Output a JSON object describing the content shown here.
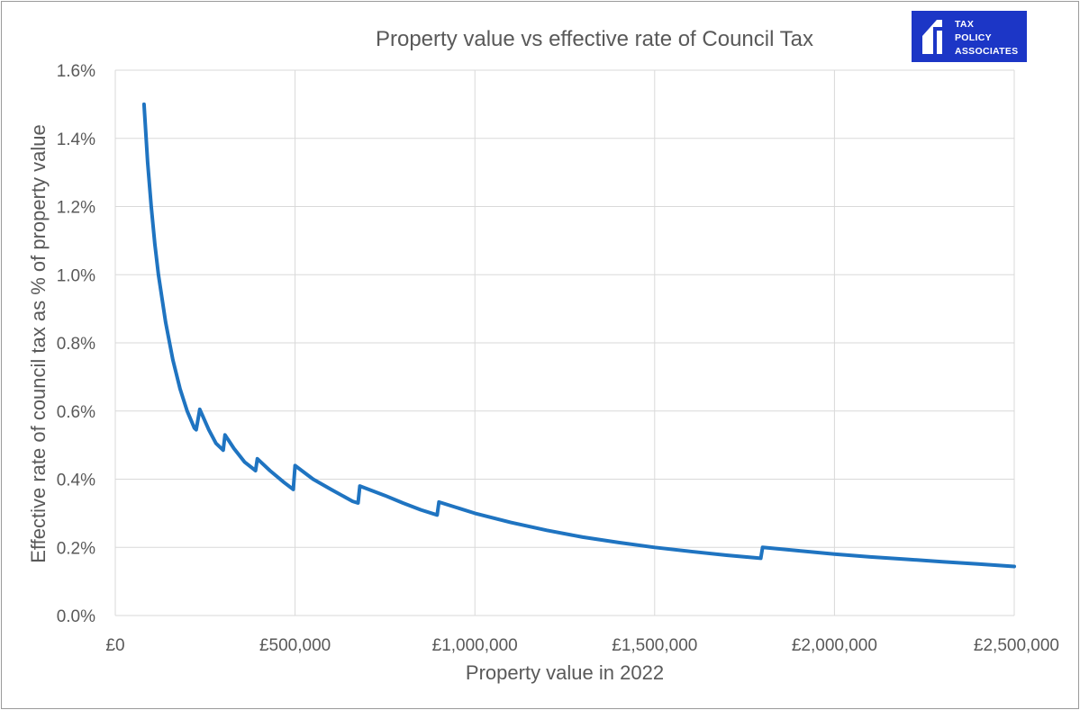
{
  "chart_data": {
    "type": "line",
    "title": "Property value vs effective rate of Council Tax",
    "xlabel": "Property value in 2022",
    "ylabel": "Effective rate of council tax as % of property value",
    "xlim": [
      0,
      2500000
    ],
    "ylim": [
      0,
      1.6
    ],
    "x_ticks": [
      0,
      500000,
      1000000,
      1500000,
      2000000,
      2500000
    ],
    "x_tick_labels": [
      "£0",
      "£500,000",
      "£1,000,000",
      "£1,500,000",
      "£2,000,000",
      "£2,500,000"
    ],
    "y_ticks": [
      0,
      0.2,
      0.4,
      0.6,
      0.8,
      1.0,
      1.2,
      1.4,
      1.6
    ],
    "y_tick_labels": [
      "0.0%",
      "0.2%",
      "0.4%",
      "0.6%",
      "0.8%",
      "1.0%",
      "1.2%",
      "1.4%",
      "1.6%"
    ],
    "grid": true,
    "series": [
      {
        "name": "Effective rate",
        "color": "#1f74c1",
        "x": [
          80000,
          90000,
          100000,
          110000,
          120000,
          140000,
          160000,
          180000,
          200000,
          220000,
          225000,
          235000,
          260000,
          280000,
          300000,
          305000,
          330000,
          360000,
          390000,
          395000,
          430000,
          470000,
          495000,
          500000,
          550000,
          600000,
          660000,
          675000,
          680000,
          750000,
          800000,
          850000,
          895000,
          900000,
          1000000,
          1100000,
          1200000,
          1300000,
          1400000,
          1500000,
          1600000,
          1700000,
          1795000,
          1800000,
          1900000,
          2000000,
          2100000,
          2200000,
          2300000,
          2400000,
          2500000
        ],
        "y": [
          1.5,
          1.33,
          1.2,
          1.09,
          1.0,
          0.86,
          0.75,
          0.665,
          0.6,
          0.55,
          0.545,
          0.605,
          0.545,
          0.505,
          0.485,
          0.53,
          0.49,
          0.45,
          0.425,
          0.46,
          0.425,
          0.39,
          0.37,
          0.44,
          0.4,
          0.37,
          0.335,
          0.33,
          0.38,
          0.352,
          0.33,
          0.31,
          0.295,
          0.333,
          0.3,
          0.273,
          0.25,
          0.23,
          0.214,
          0.2,
          0.188,
          0.177,
          0.168,
          0.2,
          0.19,
          0.18,
          0.172,
          0.165,
          0.158,
          0.151,
          0.144
        ]
      }
    ]
  },
  "logo": {
    "lines": [
      "TAX",
      "POLICY",
      "ASSOCIATES"
    ],
    "background": "#1c36c6"
  }
}
